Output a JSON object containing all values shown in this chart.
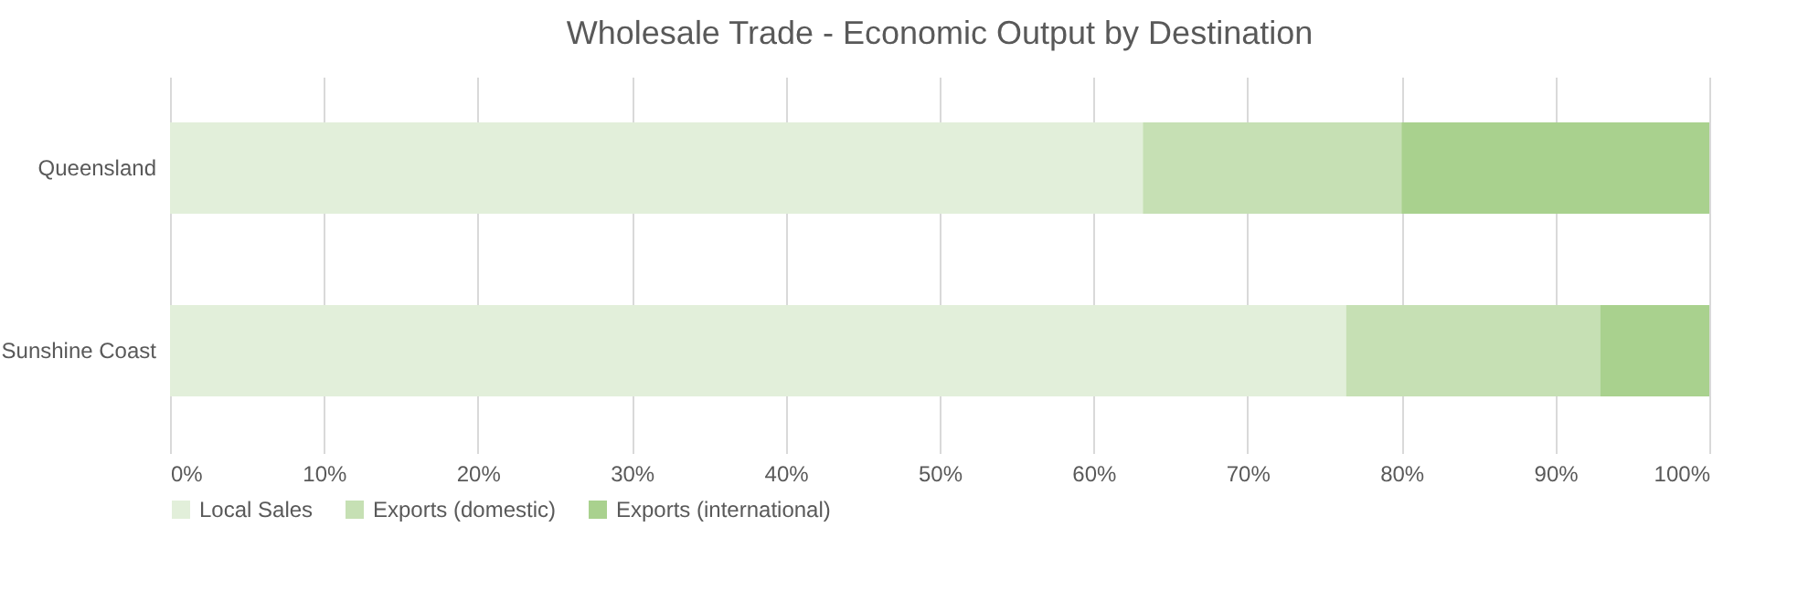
{
  "chart_data": {
    "type": "bar",
    "orientation": "horizontal",
    "stacked": true,
    "title": "Wholesale Trade - Economic Output by Destination",
    "categories": [
      "Queensland",
      "Sunshine Coast"
    ],
    "series": [
      {
        "name": "Local Sales",
        "color": "#e2efda",
        "values": [
          63.2,
          76.4
        ]
      },
      {
        "name": "Exports (domestic)",
        "color": "#c6e0b4",
        "values": [
          16.8,
          16.5
        ]
      },
      {
        "name": "Exports (international)",
        "color": "#a9d18e",
        "values": [
          20.0,
          7.1
        ]
      }
    ],
    "xlim": [
      0,
      100
    ],
    "xticks": [
      {
        "value": 0,
        "label": "0%"
      },
      {
        "value": 10,
        "label": "10%"
      },
      {
        "value": 20,
        "label": "20%"
      },
      {
        "value": 30,
        "label": "30%"
      },
      {
        "value": 40,
        "label": "40%"
      },
      {
        "value": 50,
        "label": "50%"
      },
      {
        "value": 60,
        "label": "60%"
      },
      {
        "value": 70,
        "label": "70%"
      },
      {
        "value": 80,
        "label": "80%"
      },
      {
        "value": 90,
        "label": "90%"
      },
      {
        "value": 100,
        "label": "100%"
      }
    ],
    "grid": "x",
    "legend": "bottom"
  }
}
